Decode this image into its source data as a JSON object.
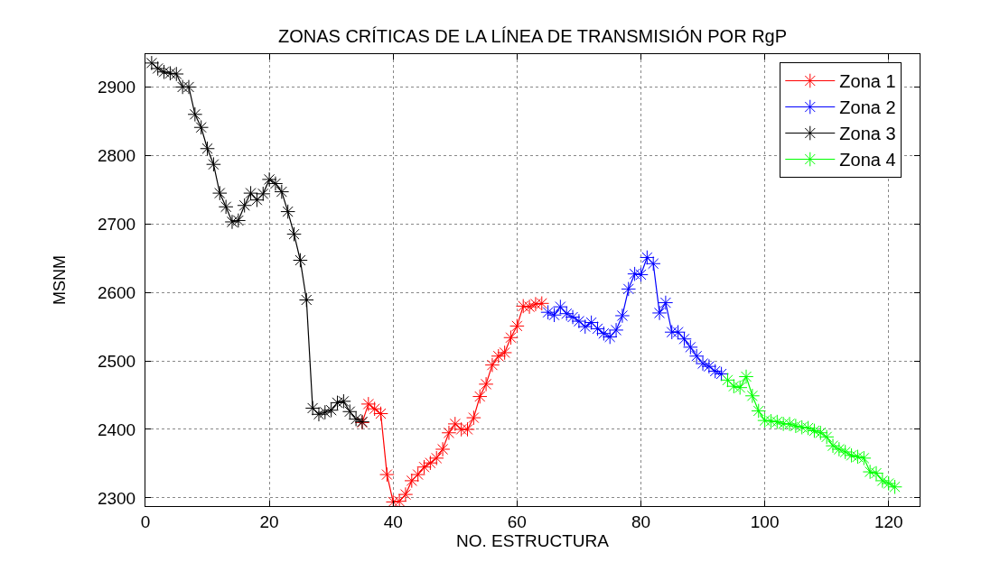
{
  "chart_data": {
    "type": "line",
    "title": "ZONAS CRÍTICAS DE LA LÍNEA DE TRANSMISIÓN POR RgP",
    "xlabel": "NO. ESTRUCTURA",
    "ylabel": "MSNM",
    "xlim": [
      0,
      125
    ],
    "xticks": [
      0,
      20,
      40,
      60,
      80,
      100,
      120
    ],
    "ylim": [
      2288,
      2948
    ],
    "yticks": [
      2300,
      2400,
      2500,
      2600,
      2700,
      2800,
      2900
    ],
    "grid": true,
    "legend": "top right",
    "marker": "cross",
    "line_style": "solid",
    "series": [
      {
        "name": "Zona 1",
        "color": "#ff0000",
        "x": [
          35,
          36,
          37,
          38,
          39,
          40,
          41,
          42,
          43,
          44,
          45,
          46,
          47,
          48,
          49,
          50,
          51,
          52,
          53,
          54,
          55,
          56,
          57,
          58,
          59,
          60,
          61,
          62,
          63,
          64
        ],
        "values": [
          2410,
          2437,
          2430,
          2423,
          2334,
          2294,
          2295,
          2305,
          2325,
          2334,
          2345,
          2351,
          2358,
          2371,
          2395,
          2408,
          2400,
          2400,
          2417,
          2448,
          2466,
          2494,
          2507,
          2512,
          2534,
          2551,
          2580,
          2579,
          2583,
          2584
        ]
      },
      {
        "name": "Zona 2",
        "color": "#0000ff",
        "x": [
          65,
          66,
          67,
          68,
          69,
          70,
          71,
          72,
          73,
          74,
          75,
          76,
          77,
          78,
          79,
          80,
          81,
          82,
          83,
          84,
          85,
          86,
          87,
          88,
          89,
          90,
          91,
          92,
          93
        ],
        "values": [
          2571,
          2567,
          2579,
          2569,
          2564,
          2558,
          2550,
          2556,
          2547,
          2540,
          2535,
          2545,
          2566,
          2605,
          2627,
          2626,
          2651,
          2642,
          2570,
          2585,
          2542,
          2542,
          2532,
          2520,
          2507,
          2496,
          2492,
          2485,
          2481
        ]
      },
      {
        "name": "Zona 3",
        "color": "#000000",
        "x": [
          1,
          2,
          3,
          4,
          5,
          6,
          7,
          8,
          9,
          10,
          11,
          12,
          13,
          14,
          15,
          16,
          17,
          18,
          19,
          20,
          21,
          22,
          23,
          24,
          25,
          26,
          27,
          28,
          29,
          30,
          31,
          32,
          33,
          34,
          35
        ],
        "values": [
          2935,
          2927,
          2922,
          2920,
          2919,
          2900,
          2900,
          2860,
          2841,
          2810,
          2787,
          2745,
          2725,
          2703,
          2705,
          2727,
          2745,
          2735,
          2744,
          2765,
          2759,
          2747,
          2718,
          2685,
          2647,
          2589,
          2431,
          2422,
          2425,
          2428,
          2439,
          2441,
          2426,
          2415,
          2411
        ]
      },
      {
        "name": "Zona 4",
        "color": "#00ff00",
        "x": [
          94,
          95,
          96,
          97,
          98,
          99,
          100,
          101,
          102,
          103,
          104,
          105,
          106,
          107,
          108,
          109,
          110,
          111,
          112,
          113,
          114,
          115,
          116,
          117,
          118,
          119,
          120,
          121
        ],
        "values": [
          2472,
          2463,
          2461,
          2477,
          2449,
          2427,
          2413,
          2412,
          2411,
          2408,
          2408,
          2405,
          2403,
          2402,
          2398,
          2395,
          2389,
          2376,
          2371,
          2367,
          2362,
          2360,
          2358,
          2338,
          2336,
          2325,
          2321,
          2316
        ]
      }
    ]
  }
}
